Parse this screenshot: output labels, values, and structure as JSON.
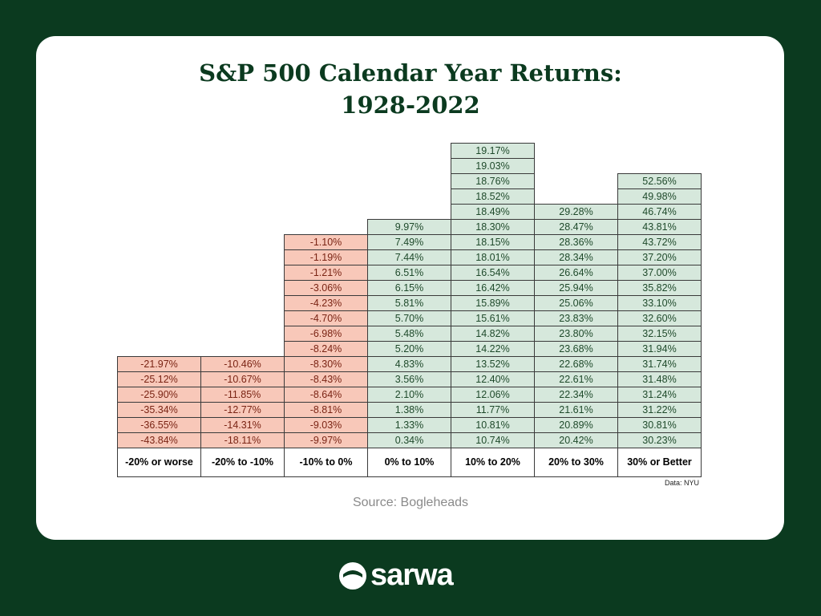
{
  "header": {
    "title_line1": "S&P 500 Calendar Year Returns:",
    "title_line2": "1928-2022"
  },
  "table": {
    "columns": [
      {
        "label": "-20% or worse",
        "color": "#f8c8b9",
        "text_color": "#7a2414",
        "cells": [
          "-21.97%",
          "-25.12%",
          "-25.90%",
          "-35.34%",
          "-36.55%",
          "-43.84%"
        ]
      },
      {
        "label": "-20% to -10%",
        "color": "#f8c8b9",
        "text_color": "#7a2414",
        "cells": [
          "-10.46%",
          "-10.67%",
          "-11.85%",
          "-12.77%",
          "-14.31%",
          "-18.11%"
        ]
      },
      {
        "label": "-10% to 0%",
        "color": "#f8c8b9",
        "text_color": "#7a2414",
        "cells": [
          "-1.10%",
          "-1.19%",
          "-1.21%",
          "-3.06%",
          "-4.23%",
          "-4.70%",
          "-6.98%",
          "-8.24%",
          "-8.30%",
          "-8.43%",
          "-8.64%",
          "-8.81%",
          "-9.03%",
          "-9.97%"
        ]
      },
      {
        "label": "0% to 10%",
        "color": "#d6e8dc",
        "text_color": "#1f4a2b",
        "cells": [
          "9.97%",
          "7.49%",
          "7.44%",
          "6.51%",
          "6.15%",
          "5.81%",
          "5.70%",
          "5.48%",
          "5.20%",
          "4.83%",
          "3.56%",
          "2.10%",
          "1.38%",
          "1.33%",
          "0.34%"
        ]
      },
      {
        "label": "10% to 20%",
        "color": "#d6e8dc",
        "text_color": "#1f4a2b",
        "cells": [
          "19.17%",
          "19.03%",
          "18.76%",
          "18.52%",
          "18.49%",
          "18.30%",
          "18.15%",
          "18.01%",
          "16.54%",
          "16.42%",
          "15.89%",
          "15.61%",
          "14.82%",
          "14.22%",
          "13.52%",
          "12.40%",
          "12.06%",
          "11.77%",
          "10.81%",
          "10.74%"
        ]
      },
      {
        "label": "20% to 30%",
        "color": "#d6e8dc",
        "text_color": "#1f4a2b",
        "cells": [
          "29.28%",
          "28.47%",
          "28.36%",
          "28.34%",
          "26.64%",
          "25.94%",
          "25.06%",
          "23.83%",
          "23.80%",
          "23.68%",
          "22.68%",
          "22.61%",
          "22.34%",
          "21.61%",
          "20.89%",
          "20.42%"
        ]
      },
      {
        "label": "30% or Better",
        "color": "#d6e8dc",
        "text_color": "#1f4a2b",
        "cells": [
          "52.56%",
          "49.98%",
          "46.74%",
          "43.81%",
          "43.72%",
          "37.20%",
          "37.00%",
          "35.82%",
          "33.10%",
          "32.60%",
          "32.15%",
          "31.94%",
          "31.74%",
          "31.48%",
          "31.24%",
          "31.22%",
          "30.81%",
          "30.23%"
        ]
      }
    ]
  },
  "note": "Data: NYU",
  "source": "Source: Bogleheads",
  "brand": "sarwa"
}
